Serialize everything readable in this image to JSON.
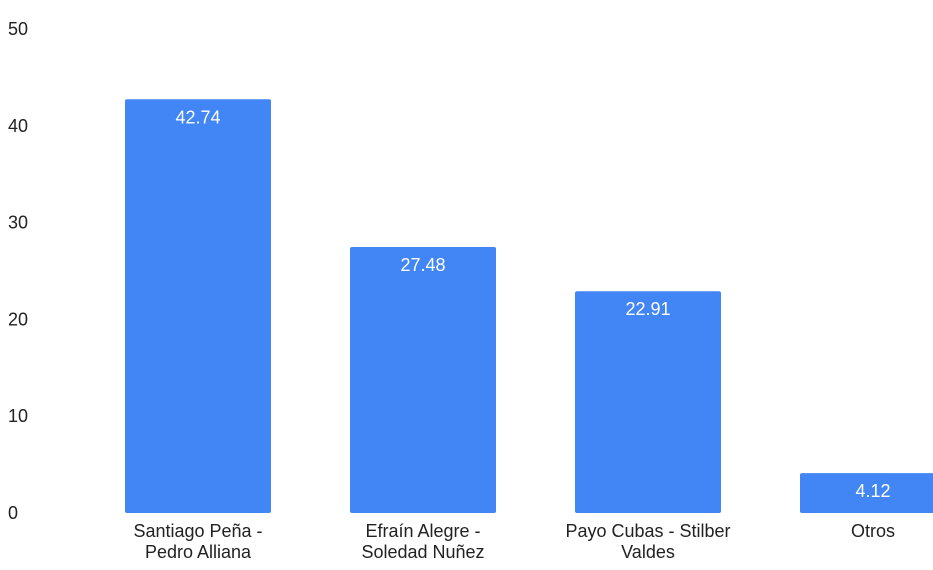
{
  "chart_data": {
    "type": "bar",
    "categories": [
      [
        "Santiago Peña -",
        "Pedro Alliana"
      ],
      [
        "Efraín Alegre -",
        "Soledad Nuñez"
      ],
      [
        "Payo Cubas - Stilber",
        "Valdes"
      ],
      [
        "Otros"
      ]
    ],
    "values": [
      42.74,
      27.48,
      22.91,
      4.12
    ],
    "data_labels": [
      "42.74",
      "27.48",
      "22.91",
      "4.12"
    ],
    "y_ticks": [
      0,
      10,
      20,
      30,
      40,
      50
    ],
    "ylim": [
      0,
      50
    ],
    "grid": false,
    "bar_color": "#4285f4",
    "title": "",
    "xlabel": "",
    "ylabel": ""
  }
}
